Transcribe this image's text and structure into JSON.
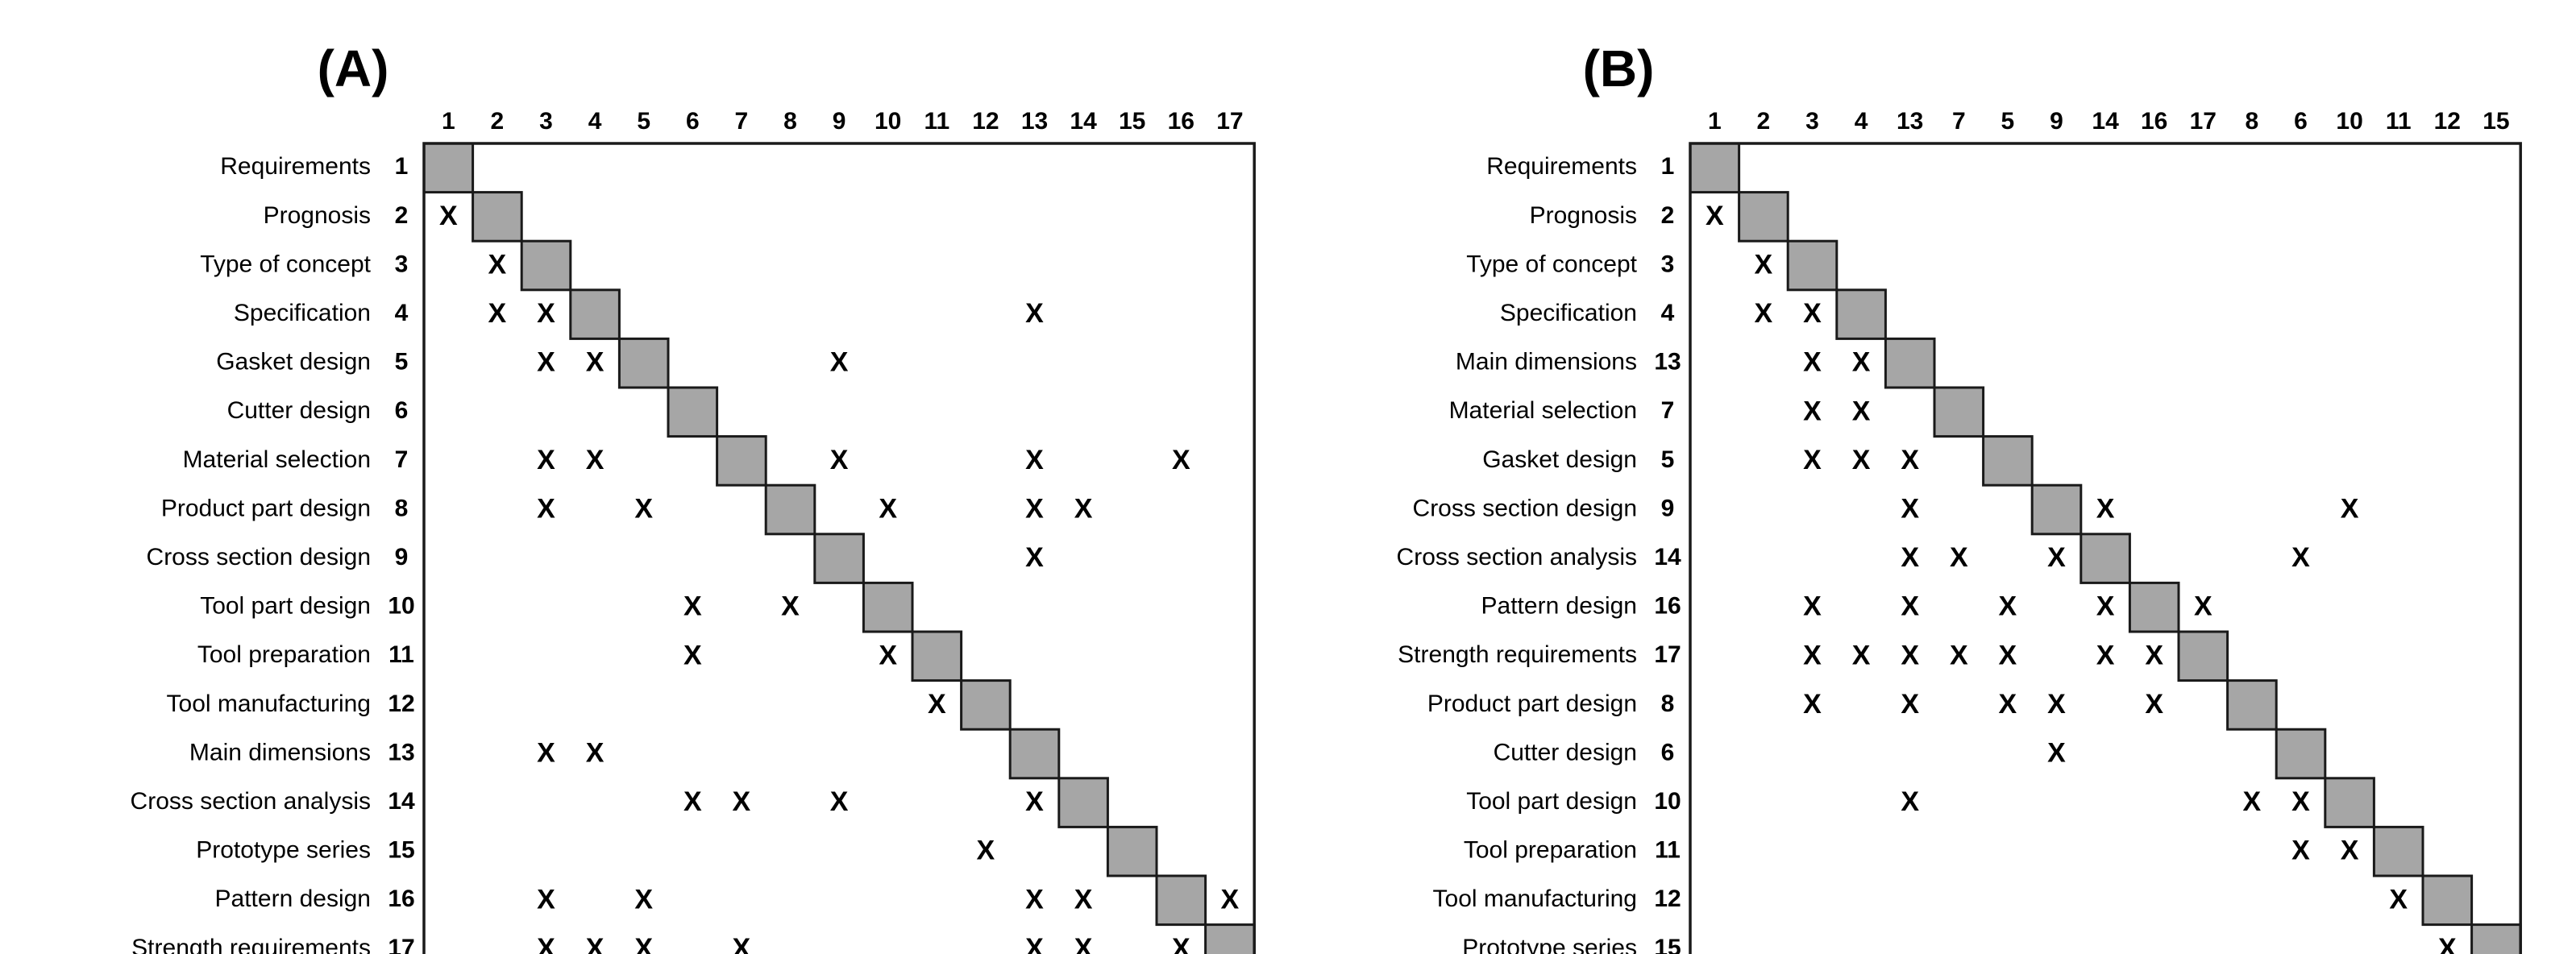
{
  "matrices": [
    {
      "label": "(A)",
      "column_order": [
        "1",
        "2",
        "3",
        "4",
        "5",
        "6",
        "7",
        "8",
        "9",
        "10",
        "11",
        "12",
        "13",
        "14",
        "15",
        "16",
        "17"
      ],
      "rows": [
        {
          "num": "1",
          "name": "Requirements",
          "marks": []
        },
        {
          "num": "2",
          "name": "Prognosis",
          "marks": [
            "1"
          ]
        },
        {
          "num": "3",
          "name": "Type of concept",
          "marks": [
            "2"
          ]
        },
        {
          "num": "4",
          "name": "Specification",
          "marks": [
            "2",
            "3",
            "13"
          ]
        },
        {
          "num": "5",
          "name": "Gasket design",
          "marks": [
            "3",
            "4",
            "9"
          ]
        },
        {
          "num": "6",
          "name": "Cutter design",
          "marks": []
        },
        {
          "num": "7",
          "name": "Material selection",
          "marks": [
            "3",
            "4",
            "9",
            "13",
            "16"
          ]
        },
        {
          "num": "8",
          "name": "Product part design",
          "marks": [
            "3",
            "5",
            "10",
            "13",
            "14"
          ]
        },
        {
          "num": "9",
          "name": "Cross section design",
          "marks": [
            "13"
          ]
        },
        {
          "num": "10",
          "name": "Tool part design",
          "marks": [
            "6",
            "8"
          ]
        },
        {
          "num": "11",
          "name": "Tool preparation",
          "marks": [
            "6",
            "10"
          ]
        },
        {
          "num": "12",
          "name": "Tool manufacturing",
          "marks": [
            "11"
          ]
        },
        {
          "num": "13",
          "name": "Main dimensions",
          "marks": [
            "3",
            "4"
          ]
        },
        {
          "num": "14",
          "name": "Cross section analysis",
          "marks": [
            "6",
            "7",
            "9",
            "13"
          ]
        },
        {
          "num": "15",
          "name": "Prototype series",
          "marks": [
            "12"
          ]
        },
        {
          "num": "16",
          "name": "Pattern design",
          "marks": [
            "3",
            "5",
            "13",
            "14",
            "17"
          ]
        },
        {
          "num": "17",
          "name": "Strength requirements",
          "marks": [
            "3",
            "4",
            "5",
            "7",
            "13",
            "14",
            "16"
          ]
        }
      ]
    },
    {
      "label": "(B)",
      "column_order": [
        "1",
        "2",
        "3",
        "4",
        "13",
        "7",
        "5",
        "9",
        "14",
        "16",
        "17",
        "8",
        "6",
        "10",
        "11",
        "12",
        "15"
      ],
      "rows": [
        {
          "num": "1",
          "name": "Requirements",
          "marks": []
        },
        {
          "num": "2",
          "name": "Prognosis",
          "marks": [
            "1"
          ]
        },
        {
          "num": "3",
          "name": "Type of concept",
          "marks": [
            "2"
          ]
        },
        {
          "num": "4",
          "name": "Specification",
          "marks": [
            "2",
            "3"
          ]
        },
        {
          "num": "13",
          "name": "Main dimensions",
          "marks": [
            "3",
            "4"
          ]
        },
        {
          "num": "7",
          "name": "Material selection",
          "marks": [
            "3",
            "4"
          ]
        },
        {
          "num": "5",
          "name": "Gasket design",
          "marks": [
            "3",
            "4",
            "13"
          ]
        },
        {
          "num": "9",
          "name": "Cross section design",
          "marks": [
            "13",
            "14",
            "10"
          ]
        },
        {
          "num": "14",
          "name": "Cross section analysis",
          "marks": [
            "13",
            "7",
            "9",
            "6"
          ]
        },
        {
          "num": "16",
          "name": "Pattern design",
          "marks": [
            "3",
            "13",
            "5",
            "14",
            "17"
          ]
        },
        {
          "num": "17",
          "name": "Strength requirements",
          "marks": [
            "3",
            "4",
            "13",
            "7",
            "5",
            "14",
            "16"
          ]
        },
        {
          "num": "8",
          "name": "Product part design",
          "marks": [
            "3",
            "13",
            "5",
            "9",
            "16"
          ]
        },
        {
          "num": "6",
          "name": "Cutter design",
          "marks": [
            "9"
          ]
        },
        {
          "num": "10",
          "name": "Tool part design",
          "marks": [
            "13",
            "8",
            "6"
          ]
        },
        {
          "num": "11",
          "name": "Tool preparation",
          "marks": [
            "6",
            "10"
          ]
        },
        {
          "num": "12",
          "name": "Tool manufacturing",
          "marks": [
            "11"
          ]
        },
        {
          "num": "15",
          "name": "Prototype series",
          "marks": [
            "12"
          ]
        }
      ]
    }
  ],
  "mark_symbol": "X",
  "colors": {
    "diagonal_fill": "#a6a6a6",
    "border": "#1a1a1a",
    "text": "#000000",
    "background": "#ffffff"
  }
}
